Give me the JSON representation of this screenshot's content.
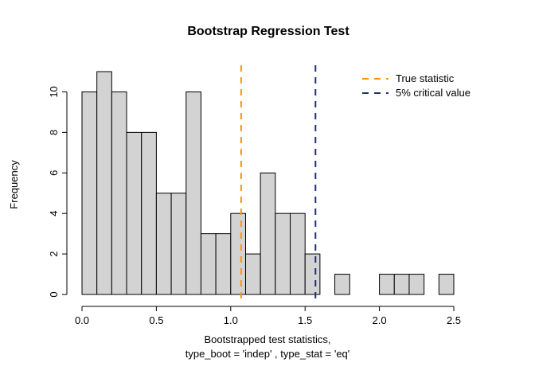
{
  "chart_data": {
    "type": "bar",
    "subtype": "histogram",
    "title": "Bootstrap Regression Test",
    "ylabel": "Frequency",
    "xlabel_line1": "Bootstrapped test statistics,",
    "xlabel_line2": "type_boot = 'indep' , type_stat = 'eq'",
    "bin_start": 0.0,
    "bin_width": 0.1,
    "counts": [
      10,
      11,
      10,
      8,
      8,
      5,
      5,
      10,
      3,
      3,
      4,
      2,
      6,
      4,
      4,
      2,
      0,
      1,
      0,
      0,
      1,
      1,
      1,
      0,
      1
    ],
    "xlim": [
      0,
      2.5
    ],
    "ylim": [
      0,
      11
    ],
    "x_ticks": [
      0.0,
      0.5,
      1.0,
      1.5,
      2.0,
      2.5
    ],
    "x_tick_labels": [
      "0.0",
      "0.5",
      "1.0",
      "1.5",
      "2.0",
      "2.5"
    ],
    "y_ticks": [
      0,
      2,
      4,
      6,
      8,
      10
    ],
    "y_tick_labels": [
      "0",
      "2",
      "4",
      "6",
      "8",
      "10"
    ],
    "grid": false,
    "bar_fill": "#d3d3d3",
    "bar_stroke": "#000000",
    "legend_position": "top-right",
    "vlines": [
      {
        "key": "true-statistic",
        "x": 1.07,
        "color": "#ff9700",
        "style": "dashed",
        "label": "True statistic"
      },
      {
        "key": "critical-value",
        "x": 1.57,
        "color": "#1e2f75",
        "style": "dashed",
        "label": "5% critical value"
      }
    ]
  }
}
